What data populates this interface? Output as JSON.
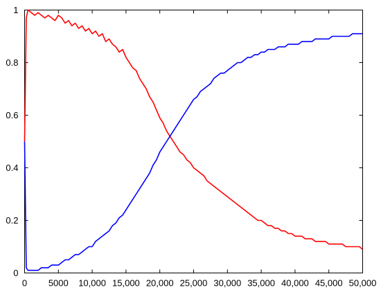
{
  "chart_data": {
    "type": "line",
    "title": "",
    "xlabel": "",
    "ylabel": "",
    "xlim": [
      0,
      50000
    ],
    "ylim": [
      0,
      1
    ],
    "grid": false,
    "xticks": [
      0,
      5000,
      10000,
      15000,
      20000,
      25000,
      30000,
      35000,
      40000,
      45000,
      50000
    ],
    "xtick_labels": [
      "0",
      "5000",
      "10,000",
      "15,000",
      "20,000",
      "25,000",
      "30,000",
      "35,000",
      "40,000",
      "45,000",
      "50,000"
    ],
    "yticks": [
      0,
      0.2,
      0.4,
      0.6,
      0.8,
      1
    ],
    "ytick_labels": [
      "0",
      "0.2",
      "0.4",
      "0.6",
      "0.8",
      "1"
    ],
    "x": [
      0,
      250,
      500,
      1000,
      1500,
      2000,
      2500,
      3000,
      3500,
      4000,
      4500,
      5000,
      5500,
      6000,
      6500,
      7000,
      7500,
      8000,
      8500,
      9000,
      9500,
      10000,
      10500,
      11000,
      11500,
      12000,
      12500,
      13000,
      13500,
      14000,
      14500,
      15000,
      15500,
      16000,
      16500,
      17000,
      17500,
      18000,
      18500,
      19000,
      19500,
      20000,
      20500,
      21000,
      21500,
      22000,
      22500,
      23000,
      23500,
      24000,
      24500,
      25000,
      25500,
      26000,
      26500,
      27000,
      27500,
      28000,
      28500,
      29000,
      29500,
      30000,
      30500,
      31000,
      31500,
      32000,
      32500,
      33000,
      33500,
      34000,
      34500,
      35000,
      35500,
      36000,
      36500,
      37000,
      37500,
      38000,
      38500,
      39000,
      39500,
      40000,
      40500,
      41000,
      41500,
      42000,
      42500,
      43000,
      43500,
      44000,
      44500,
      45000,
      45500,
      46000,
      46500,
      47000,
      47500,
      48000,
      48500,
      49000,
      49500,
      50000
    ],
    "series": [
      {
        "color": "#ff0000",
        "values": [
          0.5,
          0.97,
          1.0,
          0.99,
          0.98,
          0.99,
          0.98,
          0.97,
          0.98,
          0.97,
          0.96,
          0.98,
          0.97,
          0.95,
          0.96,
          0.94,
          0.95,
          0.93,
          0.94,
          0.92,
          0.93,
          0.91,
          0.92,
          0.9,
          0.91,
          0.88,
          0.89,
          0.87,
          0.86,
          0.84,
          0.85,
          0.82,
          0.8,
          0.78,
          0.77,
          0.74,
          0.72,
          0.7,
          0.67,
          0.65,
          0.62,
          0.59,
          0.57,
          0.54,
          0.52,
          0.5,
          0.48,
          0.46,
          0.45,
          0.43,
          0.42,
          0.4,
          0.39,
          0.38,
          0.37,
          0.35,
          0.34,
          0.33,
          0.32,
          0.31,
          0.3,
          0.29,
          0.28,
          0.27,
          0.26,
          0.25,
          0.24,
          0.23,
          0.22,
          0.21,
          0.2,
          0.2,
          0.19,
          0.18,
          0.18,
          0.17,
          0.17,
          0.16,
          0.16,
          0.15,
          0.15,
          0.14,
          0.14,
          0.14,
          0.13,
          0.13,
          0.13,
          0.12,
          0.12,
          0.12,
          0.12,
          0.11,
          0.11,
          0.11,
          0.11,
          0.11,
          0.1,
          0.1,
          0.1,
          0.1,
          0.1,
          0.09
        ]
      },
      {
        "color": "#0000ff",
        "values": [
          0.5,
          0.02,
          0.01,
          0.01,
          0.01,
          0.01,
          0.02,
          0.02,
          0.02,
          0.03,
          0.03,
          0.03,
          0.04,
          0.05,
          0.05,
          0.06,
          0.07,
          0.07,
          0.08,
          0.09,
          0.1,
          0.1,
          0.12,
          0.13,
          0.14,
          0.15,
          0.16,
          0.18,
          0.19,
          0.21,
          0.22,
          0.24,
          0.26,
          0.28,
          0.3,
          0.32,
          0.34,
          0.36,
          0.38,
          0.41,
          0.43,
          0.46,
          0.48,
          0.5,
          0.52,
          0.54,
          0.56,
          0.58,
          0.6,
          0.62,
          0.64,
          0.66,
          0.67,
          0.69,
          0.7,
          0.71,
          0.72,
          0.74,
          0.75,
          0.76,
          0.76,
          0.77,
          0.78,
          0.79,
          0.8,
          0.8,
          0.81,
          0.82,
          0.82,
          0.83,
          0.83,
          0.84,
          0.84,
          0.85,
          0.85,
          0.85,
          0.86,
          0.86,
          0.86,
          0.87,
          0.87,
          0.87,
          0.87,
          0.88,
          0.88,
          0.88,
          0.88,
          0.89,
          0.89,
          0.89,
          0.89,
          0.89,
          0.9,
          0.9,
          0.9,
          0.9,
          0.9,
          0.9,
          0.91,
          0.91,
          0.91,
          0.91
        ]
      }
    ]
  }
}
